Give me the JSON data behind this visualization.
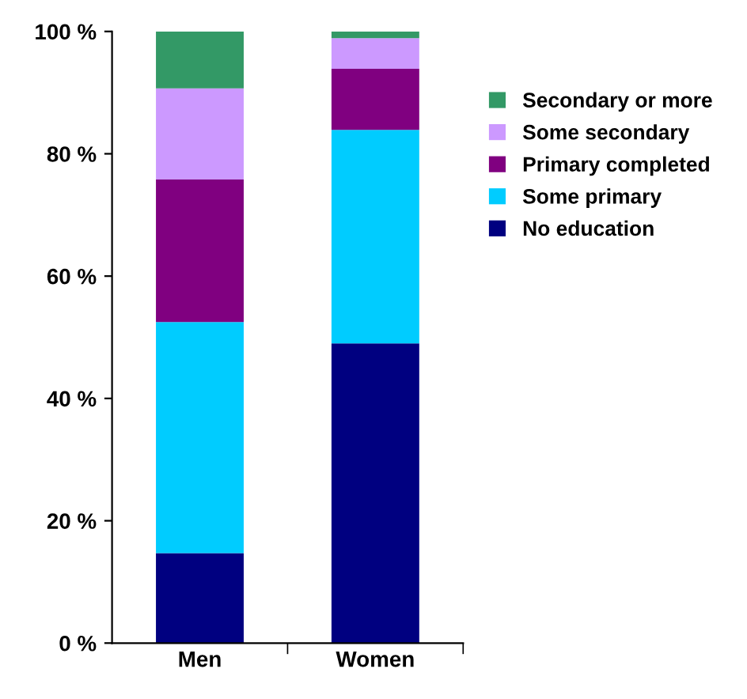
{
  "chart_data": {
    "type": "bar",
    "stacked": true,
    "categories": [
      "Men",
      "Women"
    ],
    "series": [
      {
        "name": "No education",
        "color": "#000080",
        "values": [
          14.7,
          49.0
        ]
      },
      {
        "name": "Some primary",
        "color": "#00ccff",
        "values": [
          37.8,
          34.9
        ]
      },
      {
        "name": "Primary completed",
        "color": "#800080",
        "values": [
          23.3,
          10.0
        ]
      },
      {
        "name": "Some secondary",
        "color": "#cc99ff",
        "values": [
          14.9,
          5.0
        ]
      },
      {
        "name": "Secondary or more",
        "color": "#339966",
        "values": [
          9.3,
          1.1
        ]
      }
    ],
    "ylim": [
      0,
      100
    ],
    "yticks": [
      {
        "value": 0,
        "label": "0 %"
      },
      {
        "value": 20,
        "label": "20 %"
      },
      {
        "value": 40,
        "label": "40 %"
      },
      {
        "value": 60,
        "label": "60 %"
      },
      {
        "value": 80,
        "label": "80 %"
      },
      {
        "value": 100,
        "label": "100 %"
      }
    ],
    "grid": false,
    "legend": "right"
  }
}
